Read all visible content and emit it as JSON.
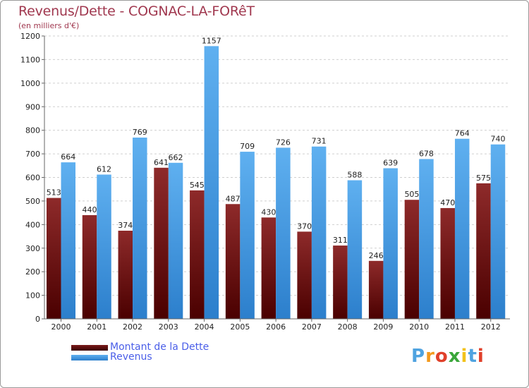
{
  "header": {
    "title": "Revenus/Dette - COGNAC-LA-FORêT",
    "subtitle": "(en milliers d'€)"
  },
  "chart_data": {
    "type": "bar",
    "title": "Revenus/Dette - COGNAC-LA-FORêT",
    "ylabel": "(en milliers d'€)",
    "xlabel": "",
    "ylim": [
      0,
      1200
    ],
    "yticks": [
      0,
      100,
      200,
      300,
      400,
      500,
      600,
      700,
      800,
      900,
      1000,
      1100,
      1200
    ],
    "grid": true,
    "categories": [
      "2000",
      "2001",
      "2002",
      "2003",
      "2004",
      "2005",
      "2006",
      "2007",
      "2008",
      "2009",
      "2010",
      "2011",
      "2012"
    ],
    "series": [
      {
        "name": "Montant de la Dette",
        "color": "#7a1b1b",
        "values": [
          513,
          440,
          374,
          641,
          545,
          487,
          430,
          370,
          311,
          246,
          505,
          470,
          575
        ]
      },
      {
        "name": "Revenus",
        "color": "#4da3e8",
        "values": [
          664,
          612,
          769,
          662,
          1157,
          709,
          726,
          731,
          588,
          639,
          678,
          764,
          740
        ]
      }
    ],
    "legend_position": "bottom-left"
  },
  "legend": {
    "items": [
      {
        "label": "Montant de la Dette",
        "color": "#6b0f0f"
      },
      {
        "label": "Revenus",
        "color": "#4da3e8"
      }
    ]
  },
  "logo": {
    "letters": [
      "P",
      "r",
      "o",
      "x",
      "i",
      "t",
      "i"
    ],
    "colors": [
      "#4fa3e0",
      "#f39a1e",
      "#e0402a",
      "#3aa63a",
      "#f2c21b",
      "#4fa3e0",
      "#e0402a"
    ]
  }
}
